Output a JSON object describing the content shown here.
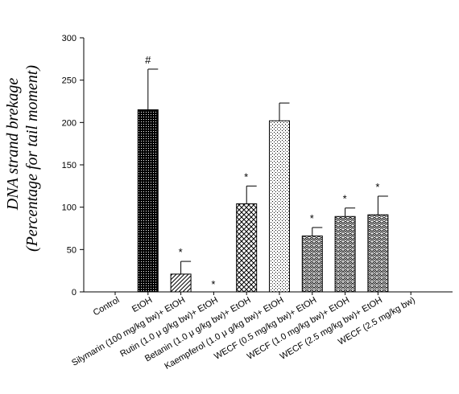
{
  "chart_data": {
    "type": "bar",
    "ylabel_line1": "DNA strand brekage",
    "ylabel_line2": "(Percentage for tail moment)",
    "ylim": [
      0,
      300
    ],
    "yticks": [
      0,
      50,
      100,
      150,
      200,
      250,
      300
    ],
    "grid": false,
    "categories": [
      "Control",
      "EtOH",
      "Silymarin (100 mg/kg bw)+ EtOH",
      "Rutin (1.0 μ g/kg bw)+ EtOH",
      "Betanin (1.0 μ g/kg bw)+ EtOH",
      "Kaempferol (1.0 μ g/kg bw)+ EtOH",
      "WECF (0.5 mg/kg bw)+ EtOH",
      "WECF (1.0 mg/kg bw)+ EtOH",
      "WECF (2.5 mg/kg bw)+ EtOH",
      "WECF (2.5 mg/kg bw)"
    ],
    "values": [
      0,
      215,
      21,
      0,
      104,
      202,
      66,
      89,
      91,
      0
    ],
    "errors": [
      0,
      48,
      15,
      0,
      21,
      21,
      10,
      10,
      22,
      0
    ],
    "annotations": [
      "",
      "#",
      "*",
      "*",
      "*",
      "",
      "*",
      "*",
      "*",
      ""
    ],
    "patterns": [
      "none",
      "dense-dots",
      "diag-lines",
      "none",
      "crosshatch",
      "sparse-dots",
      "zigzag",
      "zigzag",
      "zigzag",
      "none"
    ]
  }
}
